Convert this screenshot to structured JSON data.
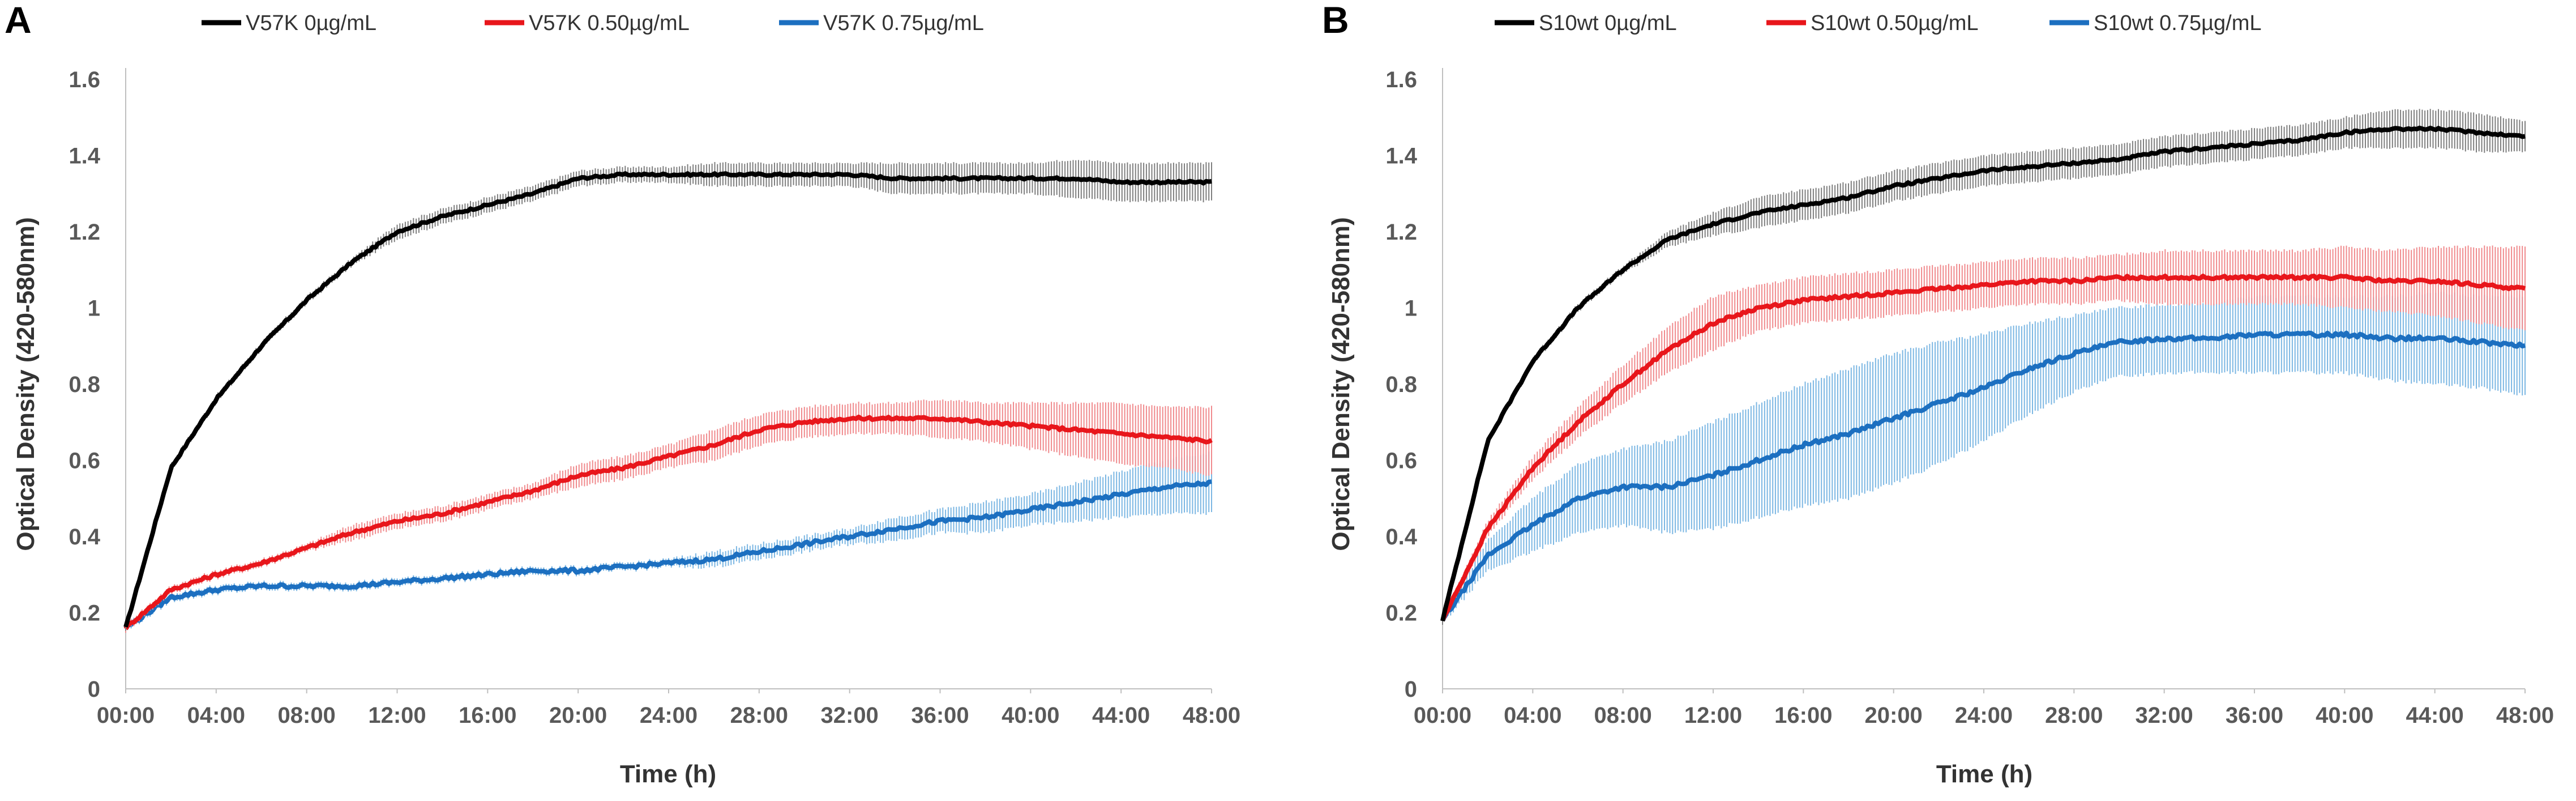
{
  "colors": {
    "black": "#000000",
    "red": "#e8161b",
    "blue": "#1c6fc0",
    "redError": "#f08a8d",
    "blueError": "#7cb7e3",
    "blackError": "#7f7f7f"
  },
  "chart_data": [
    {
      "type": "line",
      "panel": "A",
      "title": "",
      "xlabel": "Time (h)",
      "ylabel": "Optical Density (420-580nm)",
      "xlim": [
        0,
        48
      ],
      "ylim": [
        0,
        1.6
      ],
      "yticks": [
        "0",
        "0.2",
        "0.4",
        "0.6",
        "0.8",
        "1",
        "1.2",
        "1.4",
        "1.6"
      ],
      "xticks": [
        "00:00",
        "04:00",
        "08:00",
        "12:00",
        "16:00",
        "20:00",
        "24:00",
        "28:00",
        "32:00",
        "36:00",
        "40:00",
        "44:00",
        "48:00"
      ],
      "x": [
        0,
        2,
        4,
        6,
        8,
        10,
        12,
        14,
        16,
        18,
        20,
        22,
        24,
        26,
        28,
        30,
        32,
        34,
        36,
        38,
        40,
        42,
        44,
        46,
        48
      ],
      "series": [
        {
          "name": "V57K 0µg/mL",
          "color": "#000000",
          "values": [
            0.16,
            0.58,
            0.76,
            0.9,
            1.02,
            1.12,
            1.2,
            1.24,
            1.27,
            1.3,
            1.34,
            1.35,
            1.35,
            1.35,
            1.35,
            1.35,
            1.35,
            1.34,
            1.34,
            1.34,
            1.34,
            1.34,
            1.33,
            1.33,
            1.33
          ],
          "error": [
            0.01,
            0.01,
            0.01,
            0.01,
            0.01,
            0.01,
            0.02,
            0.02,
            0.02,
            0.02,
            0.02,
            0.02,
            0.02,
            0.03,
            0.03,
            0.03,
            0.03,
            0.04,
            0.04,
            0.04,
            0.04,
            0.05,
            0.05,
            0.05,
            0.05
          ]
        },
        {
          "name": "V57K 0.50µg/mL",
          "color": "#e8161b",
          "values": [
            0.16,
            0.26,
            0.3,
            0.33,
            0.37,
            0.41,
            0.44,
            0.46,
            0.49,
            0.52,
            0.56,
            0.58,
            0.61,
            0.64,
            0.68,
            0.7,
            0.71,
            0.71,
            0.71,
            0.7,
            0.69,
            0.68,
            0.67,
            0.66,
            0.65
          ],
          "error": [
            0.01,
            0.01,
            0.01,
            0.01,
            0.01,
            0.02,
            0.02,
            0.02,
            0.02,
            0.02,
            0.03,
            0.03,
            0.03,
            0.04,
            0.04,
            0.04,
            0.04,
            0.04,
            0.05,
            0.05,
            0.06,
            0.07,
            0.08,
            0.08,
            0.09
          ]
        },
        {
          "name": "V57K 0.75µg/mL",
          "color": "#1c6fc0",
          "values": [
            0.16,
            0.24,
            0.26,
            0.27,
            0.27,
            0.27,
            0.28,
            0.29,
            0.3,
            0.31,
            0.31,
            0.32,
            0.33,
            0.34,
            0.36,
            0.38,
            0.4,
            0.42,
            0.44,
            0.45,
            0.47,
            0.49,
            0.51,
            0.53,
            0.54
          ],
          "error": [
            0.01,
            0.01,
            0.01,
            0.01,
            0.01,
            0.01,
            0.01,
            0.01,
            0.01,
            0.01,
            0.01,
            0.01,
            0.01,
            0.02,
            0.02,
            0.02,
            0.02,
            0.03,
            0.03,
            0.04,
            0.04,
            0.05,
            0.06,
            0.07,
            0.08
          ]
        }
      ]
    },
    {
      "type": "line",
      "panel": "B",
      "title": "",
      "xlabel": "Time (h)",
      "ylabel": "Optical Density (420-580nm)",
      "xlim": [
        0,
        48
      ],
      "ylim": [
        0,
        1.6
      ],
      "yticks": [
        "0",
        "0.2",
        "0.4",
        "0.6",
        "0.8",
        "1",
        "1.2",
        "1.4",
        "1.6"
      ],
      "xticks": [
        "00:00",
        "04:00",
        "08:00",
        "12:00",
        "16:00",
        "20:00",
        "24:00",
        "28:00",
        "32:00",
        "36:00",
        "40:00",
        "44:00",
        "48:00"
      ],
      "x": [
        0,
        2,
        4,
        6,
        8,
        10,
        12,
        14,
        16,
        18,
        20,
        22,
        24,
        26,
        28,
        30,
        32,
        34,
        36,
        38,
        40,
        42,
        44,
        46,
        48
      ],
      "series": [
        {
          "name": "S10wt 0µg/mL",
          "color": "#000000",
          "values": [
            0.18,
            0.65,
            0.86,
            1.0,
            1.1,
            1.18,
            1.22,
            1.25,
            1.27,
            1.29,
            1.32,
            1.34,
            1.36,
            1.37,
            1.38,
            1.39,
            1.41,
            1.42,
            1.43,
            1.44,
            1.46,
            1.47,
            1.47,
            1.46,
            1.45
          ],
          "error": [
            0.01,
            0.01,
            0.01,
            0.01,
            0.01,
            0.02,
            0.03,
            0.04,
            0.04,
            0.04,
            0.04,
            0.04,
            0.04,
            0.04,
            0.04,
            0.04,
            0.04,
            0.04,
            0.04,
            0.04,
            0.04,
            0.05,
            0.05,
            0.05,
            0.04
          ]
        },
        {
          "name": "S10wt 0.50µg/mL",
          "color": "#e8161b",
          "values": [
            0.18,
            0.42,
            0.58,
            0.7,
            0.8,
            0.89,
            0.96,
            1.0,
            1.02,
            1.03,
            1.04,
            1.05,
            1.06,
            1.07,
            1.07,
            1.08,
            1.08,
            1.08,
            1.08,
            1.08,
            1.08,
            1.07,
            1.07,
            1.06,
            1.05
          ],
          "error": [
            0.01,
            0.02,
            0.03,
            0.04,
            0.05,
            0.06,
            0.07,
            0.06,
            0.06,
            0.06,
            0.06,
            0.06,
            0.06,
            0.06,
            0.06,
            0.06,
            0.07,
            0.07,
            0.07,
            0.07,
            0.08,
            0.08,
            0.09,
            0.1,
            0.11
          ]
        },
        {
          "name": "S10wt 0.75µg/mL",
          "color": "#1c6fc0",
          "values": [
            0.18,
            0.35,
            0.43,
            0.5,
            0.53,
            0.53,
            0.56,
            0.6,
            0.64,
            0.67,
            0.71,
            0.75,
            0.79,
            0.84,
            0.88,
            0.91,
            0.92,
            0.92,
            0.93,
            0.93,
            0.93,
            0.92,
            0.92,
            0.91,
            0.9
          ],
          "error": [
            0.01,
            0.04,
            0.07,
            0.09,
            0.1,
            0.12,
            0.14,
            0.15,
            0.16,
            0.17,
            0.17,
            0.16,
            0.14,
            0.12,
            0.1,
            0.09,
            0.09,
            0.09,
            0.1,
            0.1,
            0.1,
            0.11,
            0.12,
            0.12,
            0.13
          ]
        }
      ]
    }
  ]
}
